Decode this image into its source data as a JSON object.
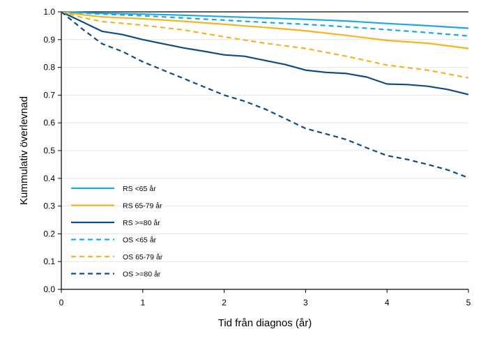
{
  "chart_data": {
    "type": "line",
    "title": "",
    "xlabel": "Tid från diagnos (år)",
    "ylabel": "Kummulativ överlevnad",
    "xlim": [
      0,
      5
    ],
    "ylim": [
      0,
      1
    ],
    "x_ticks": [
      "0",
      "1",
      "2",
      "3",
      "4",
      "5"
    ],
    "y_ticks": [
      "0.0",
      "0.1",
      "0.2",
      "0.3",
      "0.4",
      "0.5",
      "0.6",
      "0.7",
      "0.8",
      "0.9",
      "1.0"
    ],
    "grid": "horizontal",
    "legend_position": "bottom-left",
    "series": [
      {
        "name": "RS <65 år",
        "color": "#1ba9e6",
        "style": "solid",
        "points": [
          [
            0,
            1.0
          ],
          [
            0.5,
            0.995
          ],
          [
            1,
            0.992
          ],
          [
            1.5,
            0.988
          ],
          [
            2,
            0.983
          ],
          [
            2.5,
            0.978
          ],
          [
            3,
            0.973
          ],
          [
            3.5,
            0.967
          ],
          [
            4,
            0.958
          ],
          [
            4.5,
            0.95
          ],
          [
            5,
            0.941
          ]
        ]
      },
      {
        "name": "RS 65-79 år",
        "color": "#f5b31e",
        "style": "solid",
        "points": [
          [
            0,
            1.0
          ],
          [
            0.25,
            0.99
          ],
          [
            0.5,
            0.982
          ],
          [
            1,
            0.975
          ],
          [
            1.5,
            0.966
          ],
          [
            2,
            0.955
          ],
          [
            2.5,
            0.944
          ],
          [
            3,
            0.932
          ],
          [
            3.5,
            0.915
          ],
          [
            4,
            0.897
          ],
          [
            4.5,
            0.887
          ],
          [
            5,
            0.868
          ]
        ]
      },
      {
        "name": "RS >=80 år",
        "color": "#0e4b85",
        "style": "solid",
        "points": [
          [
            0,
            1.0
          ],
          [
            0.25,
            0.965
          ],
          [
            0.5,
            0.93
          ],
          [
            0.75,
            0.918
          ],
          [
            1,
            0.9
          ],
          [
            1.25,
            0.885
          ],
          [
            1.5,
            0.87
          ],
          [
            1.75,
            0.858
          ],
          [
            2,
            0.845
          ],
          [
            2.25,
            0.84
          ],
          [
            2.5,
            0.825
          ],
          [
            2.75,
            0.81
          ],
          [
            3,
            0.79
          ],
          [
            3.25,
            0.782
          ],
          [
            3.5,
            0.778
          ],
          [
            3.75,
            0.765
          ],
          [
            4,
            0.74
          ],
          [
            4.25,
            0.738
          ],
          [
            4.5,
            0.732
          ],
          [
            4.75,
            0.72
          ],
          [
            5,
            0.702
          ]
        ]
      },
      {
        "name": "OS <65 år",
        "color": "#1ba9e6",
        "style": "dashed",
        "points": [
          [
            0,
            1.0
          ],
          [
            0.5,
            0.992
          ],
          [
            1,
            0.986
          ],
          [
            1.5,
            0.978
          ],
          [
            2,
            0.97
          ],
          [
            2.5,
            0.962
          ],
          [
            3,
            0.955
          ],
          [
            3.5,
            0.946
          ],
          [
            4,
            0.936
          ],
          [
            4.5,
            0.925
          ],
          [
            5,
            0.913
          ]
        ]
      },
      {
        "name": "OS 65-79 år",
        "color": "#f5b31e",
        "style": "dashed",
        "points": [
          [
            0,
            1.0
          ],
          [
            0.25,
            0.98
          ],
          [
            0.5,
            0.965
          ],
          [
            1,
            0.952
          ],
          [
            1.5,
            0.935
          ],
          [
            2,
            0.91
          ],
          [
            2.5,
            0.887
          ],
          [
            3,
            0.868
          ],
          [
            3.5,
            0.84
          ],
          [
            4,
            0.808
          ],
          [
            4.5,
            0.79
          ],
          [
            5,
            0.762
          ]
        ]
      },
      {
        "name": "OS >=80 år",
        "color": "#0e4b85",
        "style": "dashed",
        "points": [
          [
            0,
            1.0
          ],
          [
            0.25,
            0.94
          ],
          [
            0.5,
            0.885
          ],
          [
            0.75,
            0.857
          ],
          [
            1,
            0.82
          ],
          [
            1.25,
            0.79
          ],
          [
            1.5,
            0.76
          ],
          [
            1.75,
            0.73
          ],
          [
            2,
            0.7
          ],
          [
            2.25,
            0.678
          ],
          [
            2.5,
            0.65
          ],
          [
            2.75,
            0.615
          ],
          [
            3,
            0.58
          ],
          [
            3.25,
            0.56
          ],
          [
            3.5,
            0.54
          ],
          [
            3.75,
            0.51
          ],
          [
            4,
            0.482
          ],
          [
            4.25,
            0.468
          ],
          [
            4.5,
            0.45
          ],
          [
            4.75,
            0.43
          ],
          [
            5,
            0.402
          ]
        ]
      }
    ]
  }
}
